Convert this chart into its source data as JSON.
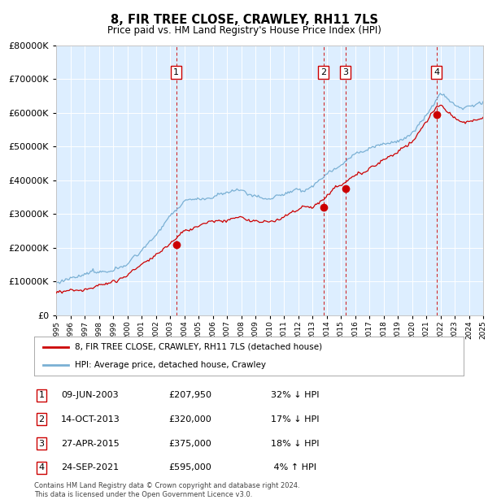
{
  "title": "8, FIR TREE CLOSE, CRAWLEY, RH11 7LS",
  "subtitle": "Price paid vs. HM Land Registry's House Price Index (HPI)",
  "footer": "Contains HM Land Registry data © Crown copyright and database right 2024.\nThis data is licensed under the Open Government Licence v3.0.",
  "legend_line1": "8, FIR TREE CLOSE, CRAWLEY, RH11 7LS (detached house)",
  "legend_line2": "HPI: Average price, detached house, Crawley",
  "transactions": [
    {
      "label": "1",
      "x_year": 2003.44,
      "price": 207950
    },
    {
      "label": "2",
      "x_year": 2013.78,
      "price": 320000
    },
    {
      "label": "3",
      "x_year": 2015.32,
      "price": 375000
    },
    {
      "label": "4",
      "x_year": 2021.73,
      "price": 595000
    }
  ],
  "table_rows": [
    {
      "label": "1",
      "date_str": "09-JUN-2003",
      "price_str": "£207,950",
      "hpi_str": "32% ↓ HPI"
    },
    {
      "label": "2",
      "date_str": "14-OCT-2013",
      "price_str": "£320,000",
      "hpi_str": "17% ↓ HPI"
    },
    {
      "label": "3",
      "date_str": "27-APR-2015",
      "price_str": "£375,000",
      "hpi_str": "18% ↓ HPI"
    },
    {
      "label": "4",
      "date_str": "24-SEP-2021",
      "price_str": "£595,000",
      "hpi_str": " 4% ↑ HPI"
    }
  ],
  "ylim": [
    0,
    800000
  ],
  "yticks": [
    0,
    100000,
    200000,
    300000,
    400000,
    500000,
    600000,
    700000,
    800000
  ],
  "bg_color": "#ddeeff",
  "line_red": "#cc0000",
  "line_blue": "#7ab0d4",
  "vline_color": "#cc0000",
  "box_color": "#cc0000",
  "xmin": 1995,
  "xmax": 2025
}
